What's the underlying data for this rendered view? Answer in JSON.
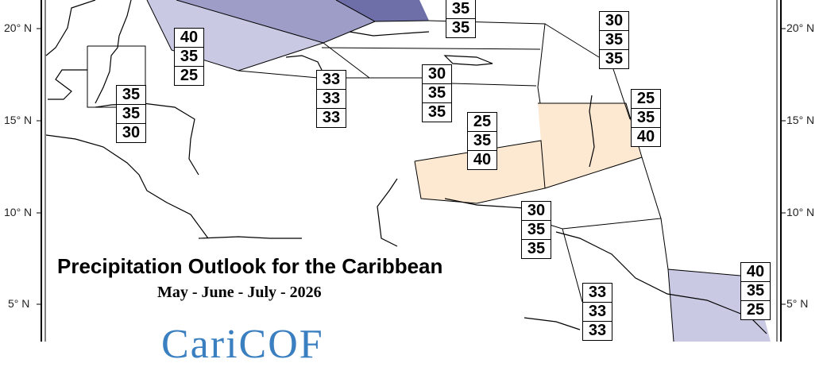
{
  "map": {
    "title": "Precipitation Outlook for the Caribbean",
    "subtitle": "May - June - July - 2026",
    "logo": "CariCOF",
    "latitude_labels_left": [
      "20° N",
      "15° N",
      "10° N",
      "5° N"
    ],
    "latitude_labels_right": [
      "20° N",
      "15° N",
      "10° N",
      "5° N"
    ],
    "colors": {
      "light_purple": "#c9c9e3",
      "medium_purple": "#9d9dc8",
      "dark_purple": "#6e6ea9",
      "peach": "#fde8d2",
      "logo_blue": "#3a7fc0"
    },
    "probability_boxes": [
      {
        "region": "northern-caribbean-top",
        "values": [
          "35",
          "35"
        ]
      },
      {
        "region": "cayman",
        "values": [
          "40",
          "35",
          "25"
        ]
      },
      {
        "region": "belize-honduras",
        "values": [
          "35",
          "35",
          "30"
        ]
      },
      {
        "region": "jamaica-south",
        "values": [
          "33",
          "33",
          "33"
        ]
      },
      {
        "region": "hispaniola-south",
        "values": [
          "30",
          "35",
          "35"
        ]
      },
      {
        "region": "northern-leewards",
        "values": [
          "30",
          "35",
          "35"
        ]
      },
      {
        "region": "windwards",
        "values": [
          "25",
          "35",
          "40"
        ]
      },
      {
        "region": "abc-islands",
        "values": [
          "25",
          "35",
          "40"
        ]
      },
      {
        "region": "trinidad-venezuela",
        "values": [
          "30",
          "35",
          "35"
        ]
      },
      {
        "region": "guyana",
        "values": [
          "33",
          "33",
          "33"
        ]
      },
      {
        "region": "suriname-french-guiana",
        "values": [
          "40",
          "35",
          "25"
        ]
      }
    ]
  }
}
